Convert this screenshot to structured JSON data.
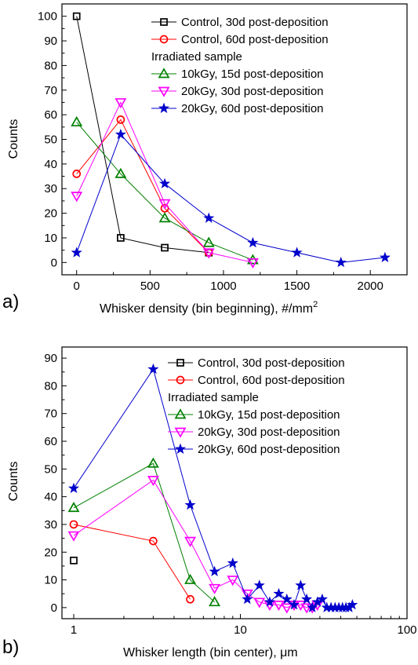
{
  "figure": {
    "colors": {
      "control_30d": "#000000",
      "control_60d": "#ff0000",
      "irr_10kGy_15d": "#008000",
      "irr_20kGy_30d": "#ff00ff",
      "irr_20kGy_60d": "#0000cc"
    }
  },
  "chart_data": [
    {
      "type": "line",
      "panel_label": "a)",
      "xlabel": "Whisker density (bin beginning), #/mm",
      "xlabel_sup": "2",
      "ylabel": "Counts",
      "xlim": [
        -100,
        2250
      ],
      "ylim": [
        -5,
        105
      ],
      "x_ticks": [
        0,
        500,
        1000,
        1500,
        2000
      ],
      "x_tick_labels": [
        "0",
        "500",
        "1000",
        "1500",
        "2000"
      ],
      "y_ticks": [
        0,
        10,
        20,
        30,
        40,
        50,
        60,
        70,
        80,
        90,
        100
      ],
      "y_tick_labels": [
        "0",
        "10",
        "20",
        "30",
        "40",
        "50",
        "60",
        "70",
        "80",
        "90",
        "100"
      ],
      "legend_position": "top-right",
      "legend_group_label": "Irradiated sample",
      "series": [
        {
          "key": "c30",
          "name": "Control, 30d post-deposition",
          "marker": "square",
          "x": [
            0,
            300,
            600,
            900
          ],
          "y": [
            100,
            10,
            6,
            4
          ]
        },
        {
          "key": "c60",
          "name": "Control, 60d post-deposition",
          "marker": "circle",
          "x": [
            0,
            300,
            600,
            900
          ],
          "y": [
            36,
            58,
            22,
            4
          ]
        },
        {
          "key": "i10_15",
          "name": "10kGy, 15d post-deposition",
          "marker": "triangle-up",
          "x": [
            0,
            300,
            600,
            900,
            1200
          ],
          "y": [
            57,
            36,
            18,
            8,
            1
          ]
        },
        {
          "key": "i20_30",
          "name": "20kGy, 30d post-deposition",
          "marker": "triangle-down",
          "x": [
            0,
            300,
            600,
            900,
            1200
          ],
          "y": [
            27,
            65,
            24,
            4,
            0
          ]
        },
        {
          "key": "i20_60",
          "name": "20kGy, 60d post-deposition",
          "marker": "star",
          "x": [
            0,
            300,
            600,
            900,
            1200,
            1500,
            1800,
            2100
          ],
          "y": [
            4,
            52,
            32,
            18,
            8,
            4,
            0,
            2
          ]
        }
      ]
    },
    {
      "type": "line",
      "panel_label": "b)",
      "xlabel": "Whisker length (bin center), μm",
      "ylabel": "Counts",
      "x_scale": "log",
      "xlim": [
        0.85,
        100
      ],
      "ylim": [
        -4,
        94
      ],
      "x_ticks": [
        1,
        10,
        100
      ],
      "x_tick_labels": [
        "1",
        "10",
        "100"
      ],
      "y_ticks": [
        0,
        10,
        20,
        30,
        40,
        50,
        60,
        70,
        80,
        90
      ],
      "y_tick_labels": [
        "0",
        "10",
        "20",
        "30",
        "40",
        "50",
        "60",
        "70",
        "80",
        "90"
      ],
      "legend_position": "top-right",
      "legend_group_label": "Irradiated sample",
      "series": [
        {
          "key": "c30",
          "name": "Control, 30d post-deposition",
          "marker": "square",
          "x": [
            1
          ],
          "y": [
            17
          ]
        },
        {
          "key": "c60",
          "name": "Control, 60d post-deposition",
          "marker": "circle",
          "x": [
            1,
            3,
            5
          ],
          "y": [
            30,
            24,
            3
          ]
        },
        {
          "key": "i10_15",
          "name": "10kGy, 15d post-deposition",
          "marker": "triangle-up",
          "x": [
            1,
            3,
            5,
            7
          ],
          "y": [
            36,
            52,
            10,
            2
          ]
        },
        {
          "key": "i20_30",
          "name": "20kGy, 30d post-deposition",
          "marker": "triangle-down",
          "x": [
            1,
            3,
            5,
            7,
            9,
            11,
            13,
            15,
            17,
            19,
            21,
            23,
            25,
            27,
            29
          ],
          "y": [
            26,
            46,
            24,
            7,
            10,
            5,
            2,
            1,
            1,
            0,
            1,
            1,
            0,
            0,
            1
          ]
        },
        {
          "key": "i20_60",
          "name": "20kGy, 60d post-deposition",
          "marker": "star",
          "x": [
            1,
            3,
            5,
            7,
            9,
            11,
            13,
            15,
            17,
            19,
            21,
            23,
            25,
            27,
            29,
            31,
            33,
            35,
            37,
            39,
            41,
            43,
            45,
            47
          ],
          "y": [
            43,
            86,
            37,
            13,
            16,
            3,
            8,
            2,
            5,
            3,
            1,
            8,
            3,
            0,
            2,
            3,
            0,
            0,
            0,
            0,
            0,
            0,
            0,
            1
          ]
        }
      ]
    }
  ]
}
